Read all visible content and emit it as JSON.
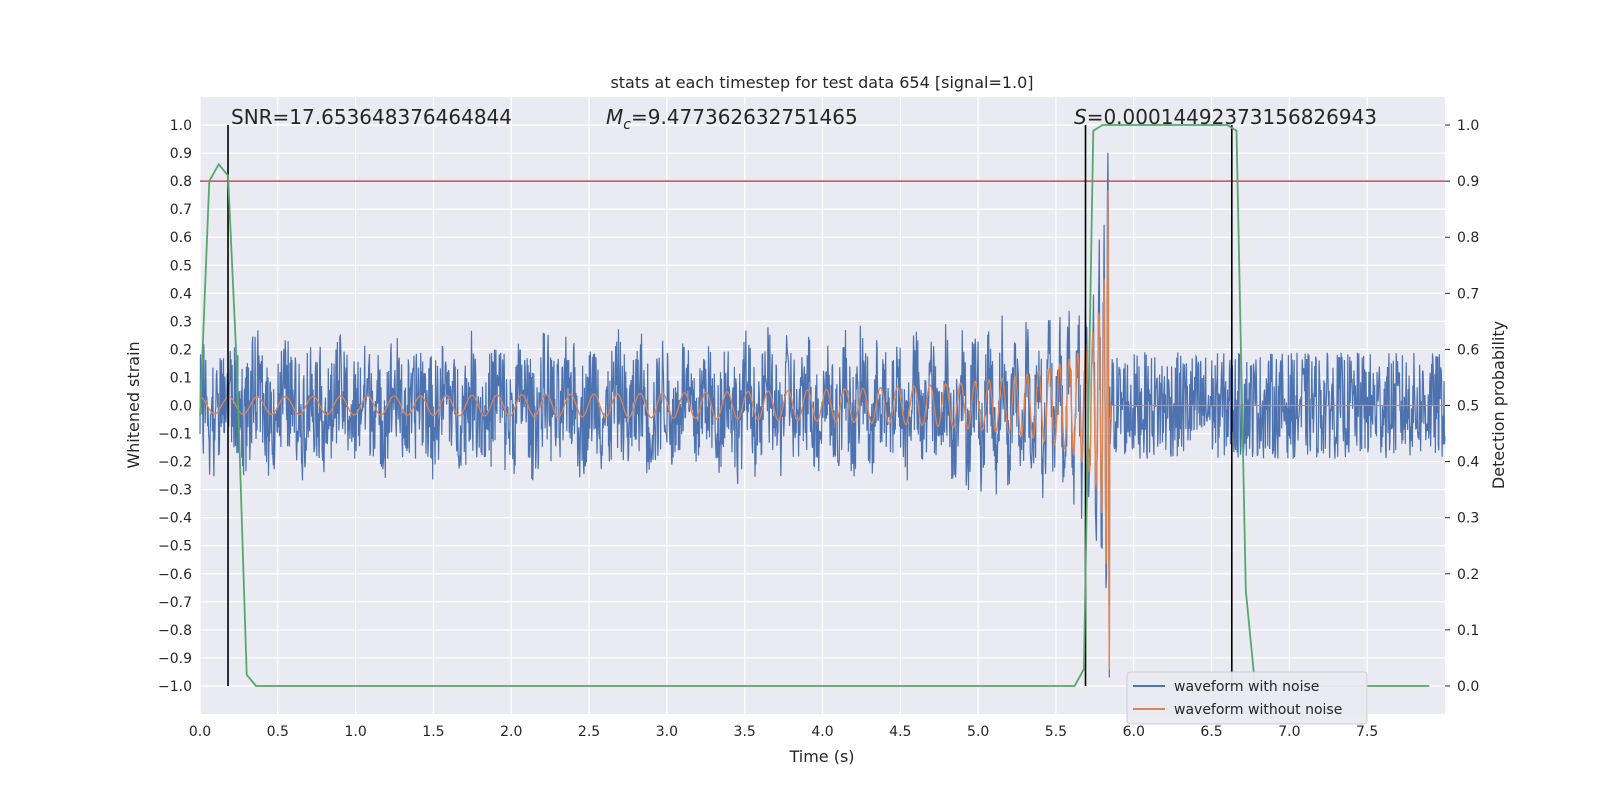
{
  "chart_data": {
    "type": "line",
    "title": "stats at each timestep for test data 654 [signal=1.0]",
    "xlabel": "Time (s)",
    "ylabel": "Whitened strain",
    "ylabel_right": "Detection probability",
    "xlim": [
      0.0,
      8.0
    ],
    "ylim": [
      -1.1,
      1.1
    ],
    "ylim_right": [
      -0.05,
      1.05
    ],
    "xticks": [
      "0.0",
      "0.5",
      "1.0",
      "1.5",
      "2.0",
      "2.5",
      "3.0",
      "3.5",
      "4.0",
      "4.5",
      "5.0",
      "5.5",
      "6.0",
      "6.5",
      "7.0",
      "7.5"
    ],
    "yticks": [
      "−1.0",
      "−0.9",
      "−0.8",
      "−0.7",
      "−0.6",
      "−0.5",
      "−0.4",
      "−0.3",
      "−0.2",
      "−0.1",
      "0.0",
      "0.1",
      "0.2",
      "0.3",
      "0.4",
      "0.5",
      "0.6",
      "0.7",
      "0.8",
      "0.9",
      "1.0"
    ],
    "yticks_right": [
      "0.0",
      "0.1",
      "0.2",
      "0.3",
      "0.4",
      "0.5",
      "0.6",
      "0.7",
      "0.8",
      "0.9",
      "1.0"
    ],
    "grid": true,
    "legend_position": "bottom-right",
    "annotations": {
      "snr": "SNR=17.653648376464844",
      "mc_symbol": "M",
      "mc_sub": "c",
      "mc_value": "=9.477362632751465",
      "s_symbol": "S",
      "s_value": "=0.00014492373156826943"
    },
    "vertical_lines_x": [
      0.18,
      5.69,
      6.63
    ],
    "threshold_right": 0.9,
    "series": [
      {
        "name": "waveform with noise",
        "color": "#4c72b0",
        "noise_amplitude": 0.2,
        "chirp_peak_amplitude": 0.95,
        "merger_time": 5.85
      },
      {
        "name": "waveform without noise",
        "color": "#dd8452",
        "start_amplitude": 0.03,
        "peak_amplitude": 0.98,
        "merger_time": 5.85
      },
      {
        "name": "detection probability",
        "color": "#55a868",
        "x": [
          0.0,
          0.06,
          0.12,
          0.18,
          0.24,
          0.3,
          0.36,
          5.62,
          5.68,
          5.74,
          5.8,
          6.6,
          6.66,
          6.72,
          6.78,
          7.9
        ],
        "y": [
          0.48,
          0.9,
          0.93,
          0.91,
          0.55,
          0.02,
          0.0,
          0.0,
          0.03,
          0.99,
          1.0,
          1.0,
          0.99,
          0.17,
          0.0,
          0.0
        ]
      }
    ],
    "threshold_color": "#c44e52"
  }
}
